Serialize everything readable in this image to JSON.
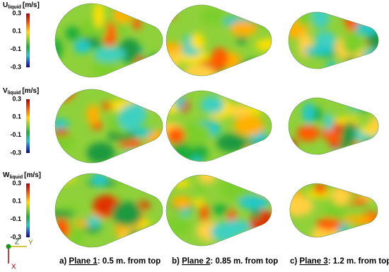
{
  "rows": [
    {
      "symbol": "U",
      "subscript": "liquid",
      "unit": "[m/s]",
      "ticks": [
        "0.3",
        "0.1",
        "-0.1",
        "-0.3"
      ]
    },
    {
      "symbol": "V",
      "subscript": "liquid",
      "unit": "[m/s]",
      "ticks": [
        "0.3",
        "0.1",
        "-0.1",
        "-0.3"
      ]
    },
    {
      "symbol": "W",
      "subscript": "liquid",
      "unit": "[m/s]",
      "ticks": [
        "0.3",
        "0.1",
        "-0.1",
        "-0.3"
      ]
    }
  ],
  "captions": [
    {
      "prefix": "a) ",
      "plane": "Plane 1",
      "suffix": ": 0.5 m. from top"
    },
    {
      "prefix": "b) ",
      "plane": "Plane 2",
      "suffix": ": 0.85 m. from top"
    },
    {
      "prefix": "c) ",
      "plane": "Plane 3",
      "suffix": ": 1.2 m. from top"
    }
  ],
  "triad": {
    "z": "Z",
    "y": "Y",
    "x": "X"
  }
}
